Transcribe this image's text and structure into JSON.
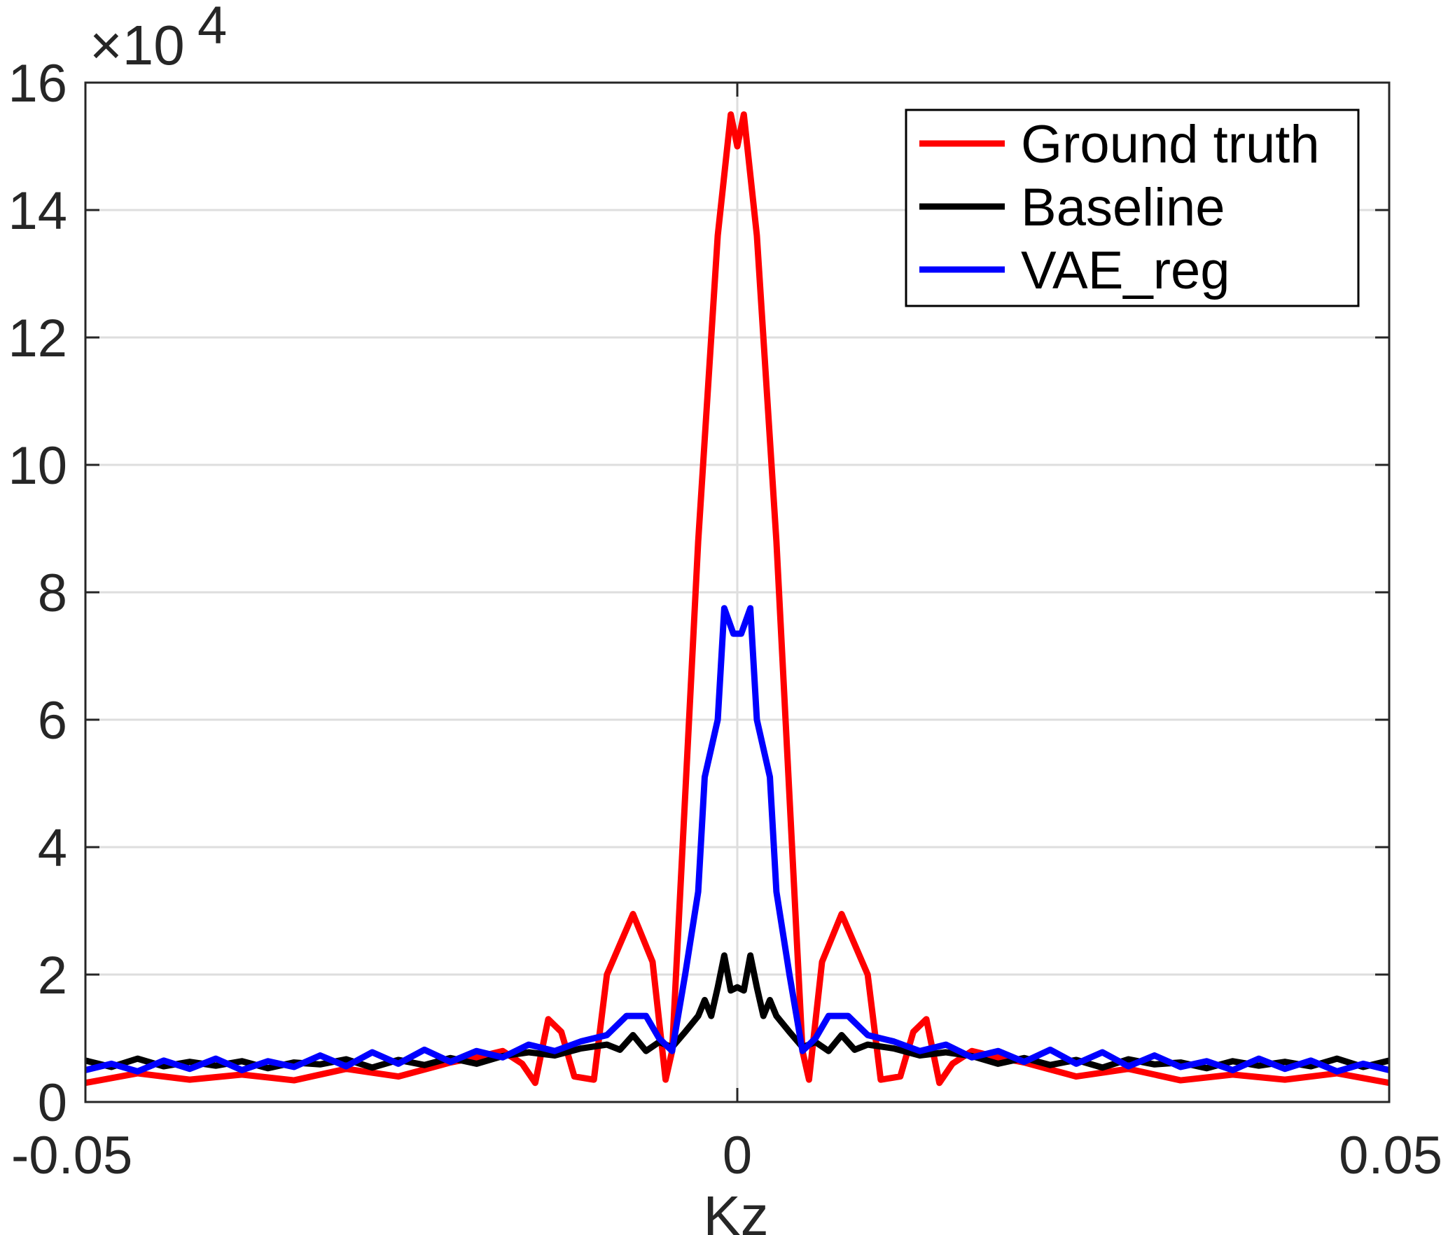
{
  "chart_data": {
    "type": "line",
    "title": "",
    "xlabel": "Kz",
    "ylabel": "",
    "xlim": [
      -0.05,
      0.05
    ],
    "ylim": [
      0,
      160000
    ],
    "y_exponent_label": {
      "base": "×10",
      "exponent": "4"
    },
    "x_ticks": [
      -0.05,
      0,
      0.05
    ],
    "x_tick_labels": [
      "-0.05",
      "0",
      "0.05"
    ],
    "y_ticks": [
      0,
      20000,
      40000,
      60000,
      80000,
      100000,
      120000,
      140000,
      160000
    ],
    "y_tick_labels": [
      "0",
      "2",
      "4",
      "6",
      "8",
      "10",
      "12",
      "14",
      "16"
    ],
    "grid": true,
    "legend_position": "top-right",
    "series": [
      {
        "name": "Ground truth",
        "color": "#ff0000",
        "points": [
          [
            -0.05,
            3000
          ],
          [
            -0.046,
            4500
          ],
          [
            -0.042,
            3500
          ],
          [
            -0.038,
            4300
          ],
          [
            -0.034,
            3400
          ],
          [
            -0.03,
            5200
          ],
          [
            -0.026,
            4000
          ],
          [
            -0.022,
            6200
          ],
          [
            -0.02,
            7000
          ],
          [
            -0.018,
            8000
          ],
          [
            -0.0165,
            6000
          ],
          [
            -0.0155,
            3000
          ],
          [
            -0.015,
            8000
          ],
          [
            -0.0145,
            13000
          ],
          [
            -0.0135,
            11000
          ],
          [
            -0.0125,
            4000
          ],
          [
            -0.011,
            3500
          ],
          [
            -0.01,
            20000
          ],
          [
            -0.008,
            29500
          ],
          [
            -0.0065,
            22000
          ],
          [
            -0.0055,
            3500
          ],
          [
            -0.005,
            8000
          ],
          [
            -0.003,
            88000
          ],
          [
            -0.0015,
            136000
          ],
          [
            -0.0005,
            155000
          ],
          [
            0,
            150000
          ],
          [
            0.0005,
            155000
          ],
          [
            0.0015,
            136000
          ],
          [
            0.003,
            88000
          ],
          [
            0.005,
            8000
          ],
          [
            0.0055,
            3500
          ],
          [
            0.0065,
            22000
          ],
          [
            0.008,
            29500
          ],
          [
            0.01,
            20000
          ],
          [
            0.011,
            3500
          ],
          [
            0.0125,
            4000
          ],
          [
            0.0135,
            11000
          ],
          [
            0.0145,
            13000
          ],
          [
            0.015,
            8000
          ],
          [
            0.0155,
            3000
          ],
          [
            0.0165,
            6000
          ],
          [
            0.018,
            8000
          ],
          [
            0.02,
            7000
          ],
          [
            0.022,
            6200
          ],
          [
            0.026,
            4000
          ],
          [
            0.03,
            5200
          ],
          [
            0.034,
            3400
          ],
          [
            0.038,
            4300
          ],
          [
            0.042,
            3500
          ],
          [
            0.046,
            4500
          ],
          [
            0.05,
            3000
          ]
        ]
      },
      {
        "name": "Baseline",
        "color": "#000000",
        "points": [
          [
            -0.05,
            6500
          ],
          [
            -0.048,
            5500
          ],
          [
            -0.046,
            6800
          ],
          [
            -0.044,
            5600
          ],
          [
            -0.042,
            6300
          ],
          [
            -0.04,
            5700
          ],
          [
            -0.038,
            6400
          ],
          [
            -0.036,
            5300
          ],
          [
            -0.034,
            6200
          ],
          [
            -0.032,
            5900
          ],
          [
            -0.03,
            6700
          ],
          [
            -0.028,
            5400
          ],
          [
            -0.026,
            6600
          ],
          [
            -0.024,
            5800
          ],
          [
            -0.022,
            6900
          ],
          [
            -0.02,
            6000
          ],
          [
            -0.018,
            7200
          ],
          [
            -0.016,
            7800
          ],
          [
            -0.014,
            7300
          ],
          [
            -0.012,
            8400
          ],
          [
            -0.01,
            9000
          ],
          [
            -0.009,
            8200
          ],
          [
            -0.008,
            10500
          ],
          [
            -0.007,
            8000
          ],
          [
            -0.006,
            9400
          ],
          [
            -0.005,
            8600
          ],
          [
            -0.004,
            11000
          ],
          [
            -0.003,
            13500
          ],
          [
            -0.0025,
            16000
          ],
          [
            -0.002,
            13500
          ],
          [
            -0.0015,
            18000
          ],
          [
            -0.001,
            23000
          ],
          [
            -0.0005,
            17500
          ],
          [
            0,
            18000
          ],
          [
            0.0005,
            17500
          ],
          [
            0.001,
            23000
          ],
          [
            0.0015,
            18000
          ],
          [
            0.002,
            13500
          ],
          [
            0.0025,
            16000
          ],
          [
            0.003,
            13500
          ],
          [
            0.004,
            11000
          ],
          [
            0.005,
            8600
          ],
          [
            0.006,
            9400
          ],
          [
            0.007,
            8000
          ],
          [
            0.008,
            10500
          ],
          [
            0.009,
            8200
          ],
          [
            0.01,
            9000
          ],
          [
            0.012,
            8400
          ],
          [
            0.014,
            7300
          ],
          [
            0.016,
            7800
          ],
          [
            0.018,
            7200
          ],
          [
            0.02,
            6000
          ],
          [
            0.022,
            6900
          ],
          [
            0.024,
            5800
          ],
          [
            0.026,
            6600
          ],
          [
            0.028,
            5400
          ],
          [
            0.03,
            6700
          ],
          [
            0.032,
            5900
          ],
          [
            0.034,
            6200
          ],
          [
            0.036,
            5300
          ],
          [
            0.038,
            6400
          ],
          [
            0.04,
            5700
          ],
          [
            0.042,
            6300
          ],
          [
            0.044,
            5600
          ],
          [
            0.046,
            6800
          ],
          [
            0.048,
            5500
          ],
          [
            0.05,
            6500
          ]
        ]
      },
      {
        "name": "VAE_reg",
        "color": "#0000ff",
        "points": [
          [
            -0.05,
            5000
          ],
          [
            -0.048,
            6000
          ],
          [
            -0.046,
            4800
          ],
          [
            -0.044,
            6500
          ],
          [
            -0.042,
            5200
          ],
          [
            -0.04,
            6800
          ],
          [
            -0.038,
            5000
          ],
          [
            -0.036,
            6400
          ],
          [
            -0.034,
            5500
          ],
          [
            -0.032,
            7300
          ],
          [
            -0.03,
            5600
          ],
          [
            -0.028,
            7800
          ],
          [
            -0.026,
            6000
          ],
          [
            -0.024,
            8200
          ],
          [
            -0.022,
            6300
          ],
          [
            -0.02,
            8000
          ],
          [
            -0.018,
            7000
          ],
          [
            -0.016,
            9000
          ],
          [
            -0.014,
            8000
          ],
          [
            -0.012,
            9500
          ],
          [
            -0.01,
            10500
          ],
          [
            -0.0085,
            13500
          ],
          [
            -0.007,
            13500
          ],
          [
            -0.006,
            10000
          ],
          [
            -0.005,
            8000
          ],
          [
            -0.004,
            20000
          ],
          [
            -0.003,
            33000
          ],
          [
            -0.0025,
            51000
          ],
          [
            -0.0015,
            60000
          ],
          [
            -0.001,
            77500
          ],
          [
            -0.0003,
            73500
          ],
          [
            0.0003,
            73500
          ],
          [
            0.001,
            77500
          ],
          [
            0.0015,
            60000
          ],
          [
            0.0025,
            51000
          ],
          [
            0.003,
            33000
          ],
          [
            0.004,
            20000
          ],
          [
            0.005,
            8000
          ],
          [
            0.006,
            10000
          ],
          [
            0.007,
            13500
          ],
          [
            0.0085,
            13500
          ],
          [
            0.01,
            10500
          ],
          [
            0.012,
            9500
          ],
          [
            0.014,
            8000
          ],
          [
            0.016,
            9000
          ],
          [
            0.018,
            7000
          ],
          [
            0.02,
            8000
          ],
          [
            0.022,
            6300
          ],
          [
            0.024,
            8200
          ],
          [
            0.026,
            6000
          ],
          [
            0.028,
            7800
          ],
          [
            0.03,
            5600
          ],
          [
            0.032,
            7300
          ],
          [
            0.034,
            5500
          ],
          [
            0.036,
            6400
          ],
          [
            0.038,
            5000
          ],
          [
            0.04,
            6800
          ],
          [
            0.042,
            5200
          ],
          [
            0.044,
            6500
          ],
          [
            0.046,
            4800
          ],
          [
            0.048,
            6000
          ],
          [
            0.05,
            5000
          ]
        ]
      }
    ]
  }
}
